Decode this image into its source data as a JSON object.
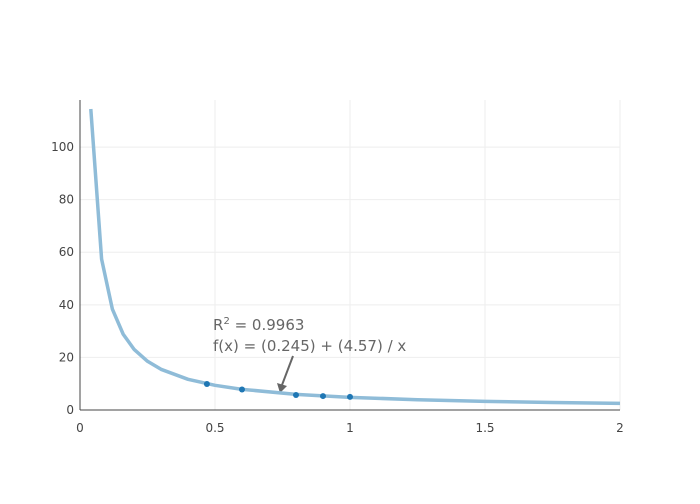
{
  "chart_data": {
    "type": "line",
    "x": [
      0.04,
      0.08,
      0.12,
      0.16,
      0.2,
      0.25,
      0.3,
      0.4,
      0.5,
      0.6,
      0.8,
      1.0,
      1.25,
      1.5,
      1.75,
      2.0
    ],
    "series": [
      {
        "color": "#8fbcd8",
        "values": [
          114.5,
          57.37,
          38.33,
          28.81,
          23.1,
          18.52,
          15.48,
          11.67,
          9.39,
          7.86,
          5.96,
          4.82,
          3.9,
          3.29,
          2.86,
          2.53
        ]
      }
    ],
    "points": {
      "color": "#1f77b4",
      "x": [
        0.47,
        0.6,
        0.8,
        0.9,
        1.0
      ],
      "values": [
        9.9,
        7.8,
        5.7,
        5.3,
        5.0
      ]
    },
    "annotation": {
      "r_label": "R",
      "r_sup": "2",
      "r_value": " = 0.9963",
      "formula": "f(x) = (0.245) + (4.57) / x"
    },
    "xlim": [
      0,
      2
    ],
    "ylim": [
      0,
      117.9
    ],
    "xticks": [
      0,
      0.5,
      1,
      1.5,
      2
    ],
    "yticks": [
      0,
      20,
      40,
      60,
      80,
      100
    ],
    "grid": true
  }
}
